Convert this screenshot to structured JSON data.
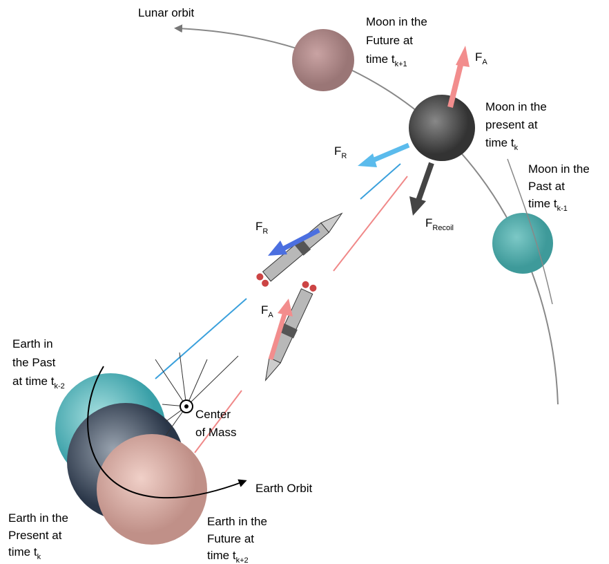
{
  "orbits": {
    "lunar": "Lunar orbit",
    "earth": "Earth Orbit"
  },
  "moons": [
    {
      "lines": [
        "Moon in the",
        "Future at",
        "time t"
      ],
      "sub": "k+1"
    },
    {
      "lines": [
        "Moon in the",
        "present at",
        "time t"
      ],
      "sub": "k"
    },
    {
      "lines": [
        "Moon in the",
        "Past at",
        "time t"
      ],
      "sub": "k-1"
    }
  ],
  "earths": [
    {
      "lines": [
        "Earth in",
        "the Past",
        "at time t"
      ],
      "sub": "k-2"
    },
    {
      "lines": [
        "Earth in the",
        "Present at",
        "time t"
      ],
      "sub": "k"
    },
    {
      "lines": [
        "Earth in the",
        "Future at",
        "time t"
      ],
      "sub": "k+2"
    }
  ],
  "forces": [
    {
      "symbol": "F",
      "sub": "A"
    },
    {
      "symbol": "F",
      "sub": "R"
    },
    {
      "symbol": "F",
      "sub": "Recoil"
    },
    {
      "symbol": "F",
      "sub": "R"
    },
    {
      "symbol": "F",
      "sub": "A"
    }
  ],
  "center_of_mass": [
    "Center",
    "of Mass"
  ]
}
